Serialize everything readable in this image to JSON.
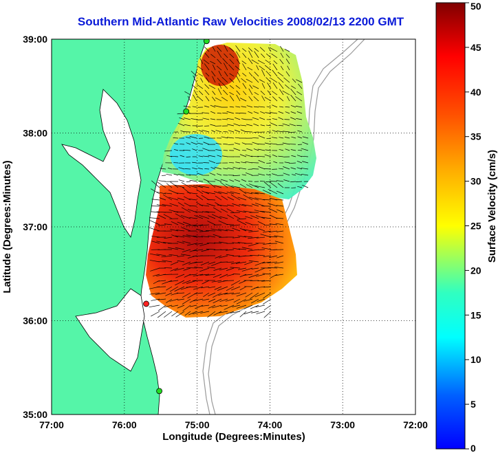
{
  "title": "Southern Mid-Atlantic Raw Velocities 2008/02/13 2200 GMT",
  "chart_data": {
    "type": "map",
    "xlabel": "Longitude (Degrees:Minutes)",
    "ylabel": "Latitude (Degrees:Minutes)",
    "xlim": [
      -77,
      -72
    ],
    "ylim": [
      35,
      39
    ],
    "xticks": [
      {
        "value": -77,
        "label": "77:00"
      },
      {
        "value": -76,
        "label": "76:00"
      },
      {
        "value": -75,
        "label": "75:00"
      },
      {
        "value": -74,
        "label": "74:00"
      },
      {
        "value": -73,
        "label": "73:00"
      },
      {
        "value": -72,
        "label": "72:00"
      }
    ],
    "yticks": [
      {
        "value": 35,
        "label": "35:00"
      },
      {
        "value": 36,
        "label": "36:00"
      },
      {
        "value": 37,
        "label": "37:00"
      },
      {
        "value": 38,
        "label": "38:00"
      },
      {
        "value": 39,
        "label": "39:00"
      }
    ],
    "grid": true,
    "colorbar": {
      "label": "Surface Velocity (cm/s)",
      "min": 0,
      "max": 50,
      "ticks": [
        0,
        5,
        10,
        15,
        20,
        25,
        30,
        35,
        40,
        45,
        50
      ],
      "colormap": "jet"
    },
    "stations": [
      {
        "lon": -74.87,
        "lat": 38.98,
        "color": "#22dd22"
      },
      {
        "lon": -75.15,
        "lat": 38.23,
        "color": "#22dd22"
      },
      {
        "lon": -75.7,
        "lat": 36.18,
        "color": "#ff2222"
      },
      {
        "lon": -75.52,
        "lat": 35.25,
        "color": "#22dd22"
      }
    ],
    "land_color": "#55f5a8"
  }
}
